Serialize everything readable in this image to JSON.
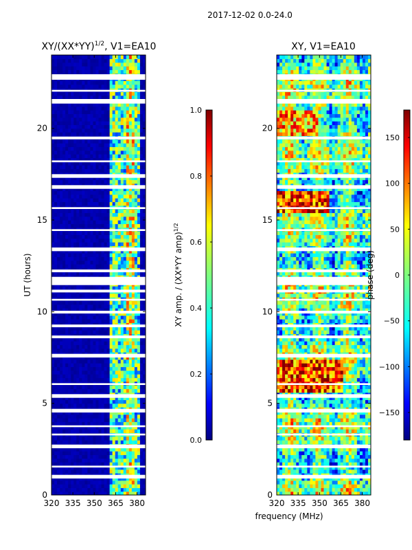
{
  "figure": {
    "suptitle": "2017-12-02 0.0-24.0",
    "shared_xlabel": "frequency (MHz)"
  },
  "chart_data": [
    {
      "type": "heatmap",
      "title": "XY/(XX*YY)",
      "title_exponent": "1/2",
      "title_suffix": ", V1=EA10",
      "xlabel": "",
      "ylabel": "UT (hours)",
      "xlim": [
        320,
        386
      ],
      "ylim": [
        0,
        24
      ],
      "xticks": [
        320,
        335,
        350,
        365,
        380
      ],
      "yticks": [
        0,
        5,
        10,
        15,
        20
      ],
      "active_band_mhz": [
        361,
        383
      ],
      "value_range": [
        0.0,
        1.0
      ],
      "colorbar": {
        "label": "XY amp. / (XX*YY amp)",
        "label_exponent": "1/2",
        "ticks": [
          "0.0",
          "0.2",
          "0.4",
          "0.6",
          "0.8",
          "1.0"
        ],
        "tick_values": [
          0.0,
          0.2,
          0.4,
          0.6,
          0.8,
          1.0
        ],
        "range": [
          0.0,
          1.0
        ]
      }
    },
    {
      "type": "heatmap",
      "title": "XY, V1=EA10",
      "xlabel": "frequency (MHz)",
      "ylabel": "",
      "xlim": [
        320,
        386
      ],
      "ylim": [
        0,
        24
      ],
      "xticks": [
        320,
        335,
        350,
        365,
        380
      ],
      "yticks": [
        0,
        5,
        10,
        15,
        20
      ],
      "value_range": [
        -180,
        180
      ],
      "colorbar": {
        "label": "phase (deg)",
        "ticks": [
          "150",
          "100",
          "50",
          "0",
          "−50",
          "−100",
          "−150"
        ],
        "tick_values": [
          150,
          100,
          50,
          0,
          -50,
          -100,
          -150
        ],
        "range": [
          -180,
          180
        ]
      }
    }
  ],
  "data_gaps_ut_hours": [
    [
      0.9,
      1.1
    ],
    [
      1.5,
      1.6
    ],
    [
      2.55,
      2.75
    ],
    [
      3.25,
      3.35
    ],
    [
      3.7,
      3.8
    ],
    [
      4.5,
      4.7
    ],
    [
      5.3,
      5.5
    ],
    [
      6.0,
      6.1
    ],
    [
      7.5,
      7.7
    ],
    [
      8.55,
      8.7
    ],
    [
      9.15,
      9.3
    ],
    [
      9.9,
      10.05
    ],
    [
      10.6,
      10.7
    ],
    [
      11.05,
      11.2
    ],
    [
      11.45,
      11.9
    ],
    [
      12.15,
      12.3
    ],
    [
      13.3,
      13.5
    ],
    [
      14.4,
      14.5
    ],
    [
      15.6,
      15.7
    ],
    [
      16.7,
      16.9
    ],
    [
      17.3,
      17.5
    ],
    [
      18.15,
      18.25
    ],
    [
      19.4,
      19.55
    ],
    [
      21.35,
      21.6
    ],
    [
      22.0,
      22.1
    ],
    [
      22.65,
      22.95
    ]
  ],
  "colors": {
    "jet": [
      "#00007f",
      "#0000ff",
      "#007fff",
      "#00ffff",
      "#7fff7f",
      "#ffff00",
      "#ff7f00",
      "#ff0000",
      "#7f0000"
    ],
    "axis": "#000000",
    "gap": "#ffffff"
  }
}
